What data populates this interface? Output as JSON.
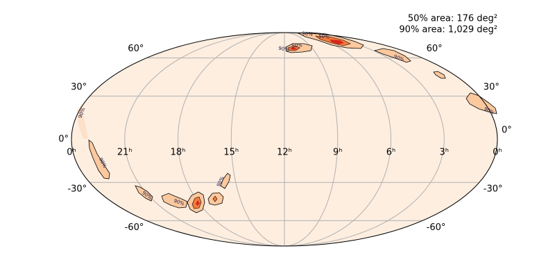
{
  "map": {
    "projection": "mollweide",
    "annotations": [
      "50% area: 176 deg²",
      "90% area: 1,029 deg²"
    ],
    "ra_ticks": [
      {
        "value": 24,
        "label": "0ʰ"
      },
      {
        "value": 21,
        "label": "21ʰ"
      },
      {
        "value": 18,
        "label": "18ʰ"
      },
      {
        "value": 15,
        "label": "15ʰ"
      },
      {
        "value": 12,
        "label": "12ʰ"
      },
      {
        "value": 9,
        "label": "9ʰ"
      },
      {
        "value": 6,
        "label": "6ʰ"
      },
      {
        "value": 3,
        "label": "3ʰ"
      },
      {
        "value": 0,
        "label": "0ʰ"
      }
    ],
    "dec_ticks": [
      {
        "value": 60,
        "label": "60°"
      },
      {
        "value": 30,
        "label": "30°"
      },
      {
        "value": 0,
        "label": "0°"
      },
      {
        "value": -30,
        "label": "-30°"
      },
      {
        "value": -60,
        "label": "-60°"
      }
    ],
    "grid": true,
    "contour_labels": [
      "90%",
      "90%",
      "90%",
      "90%",
      "90%",
      "90%",
      "50%",
      "90%",
      "50%",
      "90%",
      "90%"
    ]
  }
}
